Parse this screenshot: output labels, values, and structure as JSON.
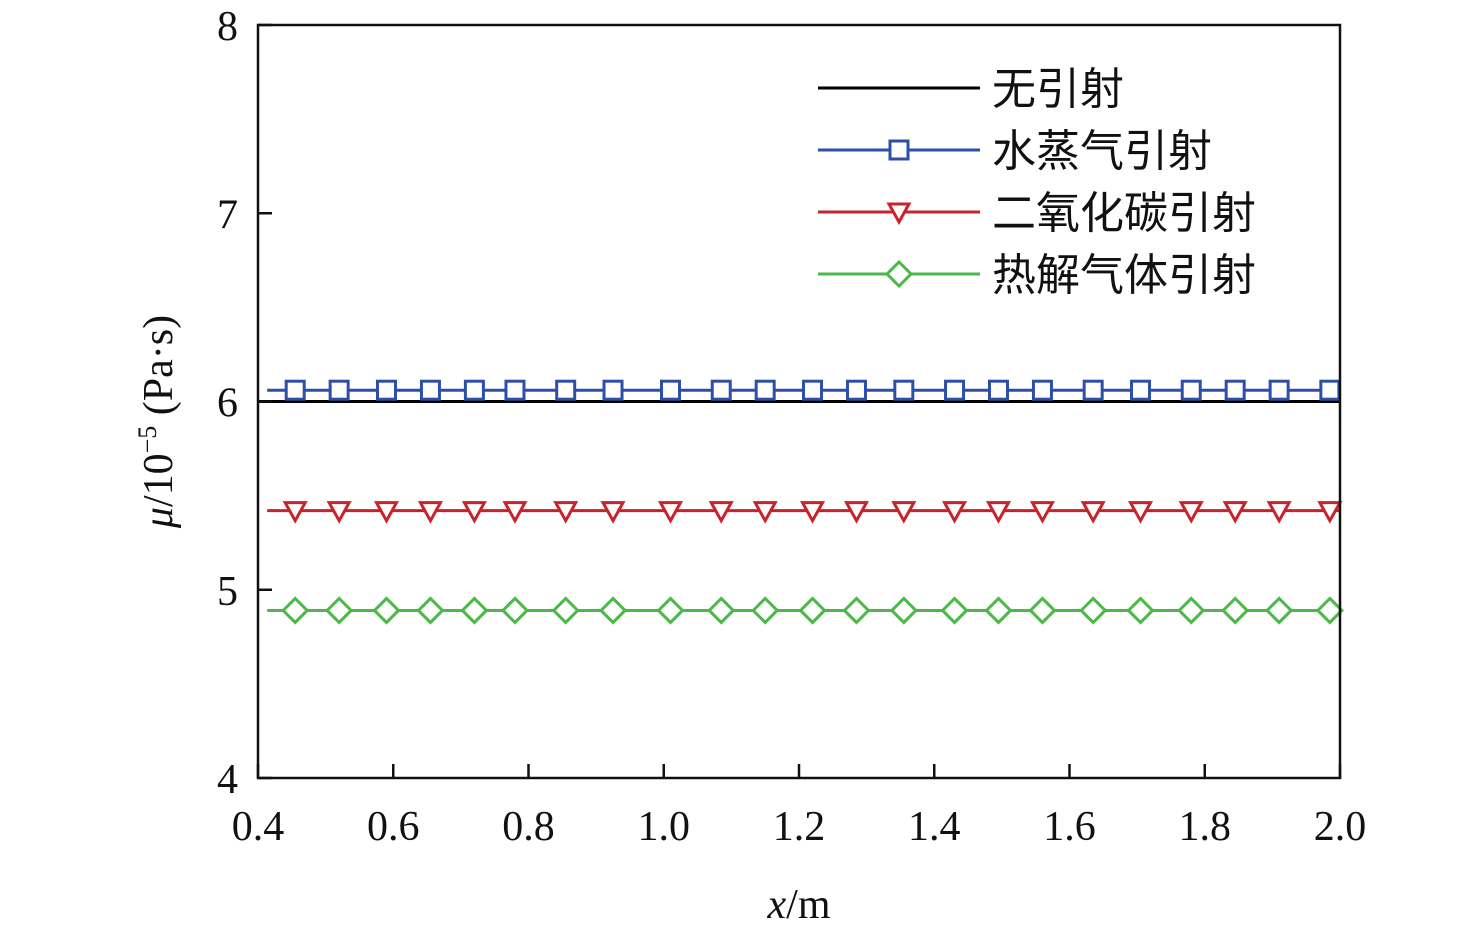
{
  "chart_data": {
    "type": "line",
    "xlabel_var": "x",
    "xlabel_unit": "/m",
    "ylabel_var": "μ",
    "ylabel_rest": "/10",
    "ylabel_exp": "−5",
    "ylabel_unit": " (Pa·s)",
    "xlim": [
      0.4,
      2.0
    ],
    "ylim": [
      4,
      8
    ],
    "x_ticks": [
      0.4,
      0.6,
      0.8,
      1.0,
      1.2,
      1.4,
      1.6,
      1.8,
      2.0
    ],
    "x_tick_labels": [
      "0.4",
      "0.6",
      "0.8",
      "1.0",
      "1.2",
      "1.4",
      "1.6",
      "1.8",
      "2.0"
    ],
    "y_ticks": [
      4,
      5,
      6,
      7,
      8
    ],
    "y_tick_labels": [
      "4",
      "5",
      "6",
      "7",
      "8"
    ],
    "legend_position": "top-right",
    "grid": false,
    "x": [
      0.455,
      0.52,
      0.59,
      0.655,
      0.72,
      0.78,
      0.855,
      0.925,
      1.01,
      1.085,
      1.15,
      1.22,
      1.285,
      1.355,
      1.43,
      1.495,
      1.56,
      1.635,
      1.705,
      1.78,
      1.845,
      1.91,
      1.985
    ],
    "series": [
      {
        "name": "无引射",
        "marker": "none",
        "color": "#000000",
        "values": [
          6.0,
          6.0,
          6.0,
          6.0,
          6.0,
          6.0,
          6.0,
          6.0,
          6.0,
          6.0,
          6.0,
          6.0,
          6.0,
          6.0,
          6.0,
          6.0,
          6.0,
          6.0,
          6.0,
          6.0,
          6.0,
          6.0,
          6.0
        ]
      },
      {
        "name": "水蒸气引射",
        "marker": "square",
        "color": "#2e4fa8",
        "values": [
          6.06,
          6.06,
          6.06,
          6.06,
          6.06,
          6.06,
          6.06,
          6.06,
          6.06,
          6.06,
          6.06,
          6.06,
          6.06,
          6.06,
          6.06,
          6.06,
          6.06,
          6.06,
          6.06,
          6.06,
          6.06,
          6.06,
          6.06
        ]
      },
      {
        "name": "二氧化碳引射",
        "marker": "triangle-down",
        "color": "#c8232c",
        "values": [
          5.42,
          5.42,
          5.42,
          5.42,
          5.42,
          5.42,
          5.42,
          5.42,
          5.42,
          5.42,
          5.42,
          5.42,
          5.42,
          5.42,
          5.42,
          5.42,
          5.42,
          5.42,
          5.42,
          5.42,
          5.42,
          5.42,
          5.42
        ]
      },
      {
        "name": "热解气体引射",
        "marker": "diamond",
        "color": "#4cb848",
        "values": [
          4.89,
          4.89,
          4.89,
          4.89,
          4.89,
          4.89,
          4.89,
          4.89,
          4.89,
          4.89,
          4.89,
          4.89,
          4.89,
          4.89,
          4.89,
          4.89,
          4.89,
          4.89,
          4.89,
          4.89,
          4.89,
          4.89,
          4.89
        ]
      }
    ]
  }
}
